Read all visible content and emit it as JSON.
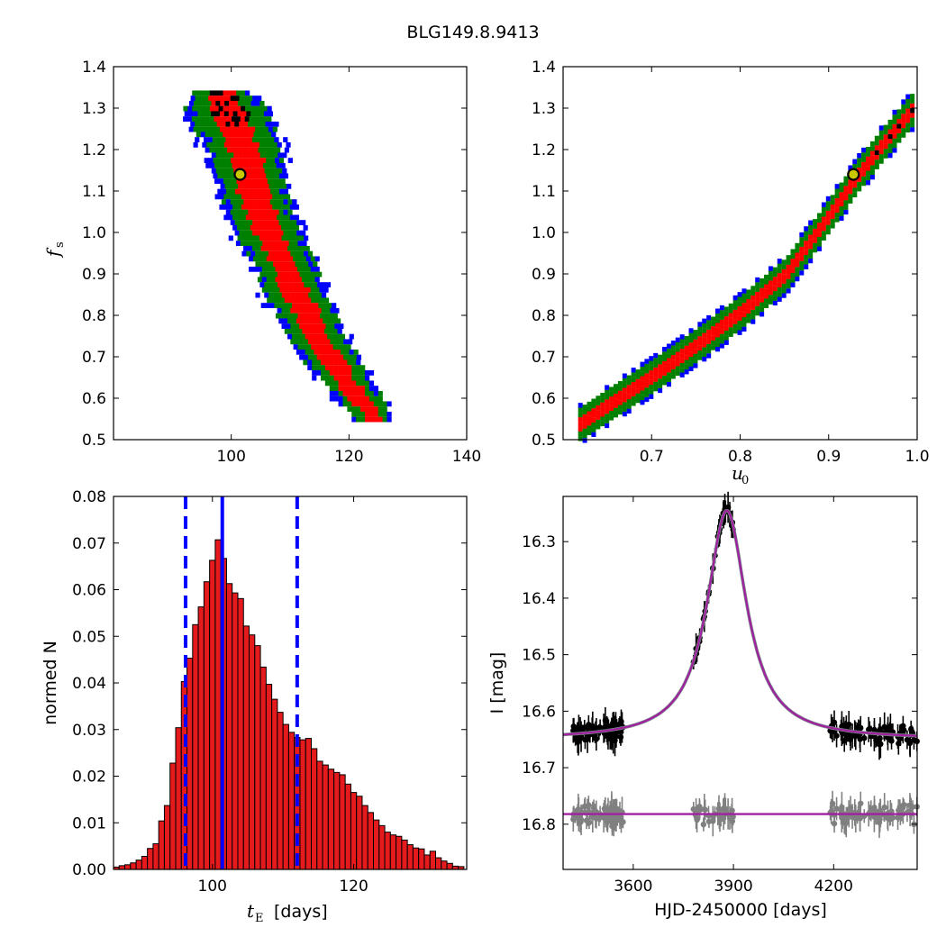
{
  "figure": {
    "title": "BLG149.8.9413"
  },
  "chart_data": [
    {
      "panel": "top-left",
      "type": "heatmap",
      "xlim": [
        80,
        140
      ],
      "ylim": [
        0.5,
        1.4
      ],
      "xticks": [
        "100",
        "120",
        "140"
      ],
      "yticks": [
        "0.5",
        "0.6",
        "0.7",
        "0.8",
        "0.9",
        "1.0",
        "1.1",
        "1.2",
        "1.3",
        "1.4"
      ],
      "xlabel": "",
      "ylabel": "f",
      "ylabel_sub": "s",
      "colors": {
        "outer": "#0000ff",
        "mid": "#008000",
        "inner": "#ff0000",
        "core": "#000000",
        "best_fit_face": "#c8c800"
      },
      "best_fit": {
        "x": 101.5,
        "y": 1.14
      },
      "bands": [
        {
          "y": 1.35,
          "xmin": 93,
          "xmax": 102
        },
        {
          "y": 1.3,
          "xmin": 92,
          "xmax": 106
        },
        {
          "y": 1.25,
          "xmin": 94,
          "xmax": 107
        },
        {
          "y": 1.2,
          "xmin": 96,
          "xmax": 108
        },
        {
          "y": 1.15,
          "xmin": 97,
          "xmax": 108.5
        },
        {
          "y": 1.1,
          "xmin": 98,
          "xmax": 109
        },
        {
          "y": 1.05,
          "xmin": 99.5,
          "xmax": 110
        },
        {
          "y": 1.0,
          "xmin": 101,
          "xmax": 111.5
        },
        {
          "y": 0.95,
          "xmin": 103,
          "xmax": 113
        },
        {
          "y": 0.9,
          "xmin": 104.5,
          "xmax": 114
        },
        {
          "y": 0.85,
          "xmin": 106,
          "xmax": 116
        },
        {
          "y": 0.8,
          "xmin": 108,
          "xmax": 117.5
        },
        {
          "y": 0.75,
          "xmin": 110,
          "xmax": 119
        },
        {
          "y": 0.7,
          "xmin": 112,
          "xmax": 121
        },
        {
          "y": 0.65,
          "xmin": 115,
          "xmax": 123
        },
        {
          "y": 0.6,
          "xmin": 118,
          "xmax": 125.5
        },
        {
          "y": 0.55,
          "xmin": 121,
          "xmax": 127
        }
      ]
    },
    {
      "panel": "top-right",
      "type": "heatmap",
      "xlim": [
        0.6,
        1.0
      ],
      "ylim": [
        0.5,
        1.4
      ],
      "xticks": [
        "0.7",
        "0.8",
        "0.9",
        "1.0"
      ],
      "yticks": [
        "0.5",
        "0.6",
        "0.7",
        "0.8",
        "0.9",
        "1.0",
        "1.1",
        "1.2",
        "1.3",
        "1.4"
      ],
      "xlabel": "u",
      "xlabel_sub": "0",
      "ylabel": "",
      "best_fit": {
        "x": 0.928,
        "y": 1.14
      },
      "curve": [
        [
          0.615,
          0.54
        ],
        [
          0.65,
          0.59
        ],
        [
          0.7,
          0.66
        ],
        [
          0.75,
          0.735
        ],
        [
          0.8,
          0.815
        ],
        [
          0.85,
          0.905
        ],
        [
          0.9,
          1.05
        ],
        [
          0.93,
          1.14
        ],
        [
          0.96,
          1.22
        ],
        [
          1.0,
          1.32
        ]
      ]
    },
    {
      "panel": "bottom-left",
      "type": "bar",
      "xlim": [
        86,
        136
      ],
      "ylim": [
        0.0,
        0.08
      ],
      "xticks": [
        "100",
        "120"
      ],
      "yticks": [
        "0.00",
        "0.01",
        "0.02",
        "0.03",
        "0.04",
        "0.05",
        "0.06",
        "0.07",
        "0.08"
      ],
      "xlabel": "t",
      "xlabel_sub": "E",
      "xlabel_suffix": "[days]",
      "ylabel": "normed N",
      "bar_color": "#e41a1c",
      "bin_width": 0.8,
      "bin_start": 86,
      "values": [
        0.0005,
        0.0008,
        0.001,
        0.0014,
        0.002,
        0.0028,
        0.0045,
        0.0055,
        0.0104,
        0.0137,
        0.0228,
        0.0304,
        0.0403,
        0.0453,
        0.0525,
        0.0563,
        0.0617,
        0.0663,
        0.0707,
        0.0667,
        0.0613,
        0.0593,
        0.0581,
        0.0522,
        0.0503,
        0.048,
        0.0434,
        0.0397,
        0.0365,
        0.0337,
        0.0311,
        0.0294,
        0.0283,
        0.0278,
        0.0281,
        0.0259,
        0.0232,
        0.0224,
        0.0215,
        0.0208,
        0.0203,
        0.0183,
        0.0165,
        0.0157,
        0.0137,
        0.0122,
        0.0106,
        0.0094,
        0.008,
        0.0074,
        0.0071,
        0.0063,
        0.0053,
        0.0046,
        0.0044,
        0.0031,
        0.0039,
        0.0025,
        0.0018,
        0.0013,
        0.0007,
        0.0006
      ],
      "vlines": [
        {
          "x": 96.2,
          "style": "dashed",
          "color": "#0000ff"
        },
        {
          "x": 101.4,
          "style": "solid",
          "color": "#0000ff"
        },
        {
          "x": 112.0,
          "style": "dashed",
          "color": "#0000ff"
        }
      ]
    },
    {
      "panel": "bottom-right",
      "type": "scatter",
      "xlim": [
        3390,
        4450
      ],
      "ylim": [
        16.88,
        16.22
      ],
      "xticks": [
        "3600",
        "3900",
        "4200"
      ],
      "yticks": [
        "16.3",
        "16.4",
        "16.5",
        "16.6",
        "16.7",
        "16.8"
      ],
      "xlabel": "HJD-2450000 [days]",
      "ylabel": "I [mag]",
      "model": {
        "baseline": 16.65,
        "peak": 16.245,
        "t0": 3880,
        "width": 72,
        "color": "#a020a0"
      },
      "residual_baseline": 16.782,
      "data_color": "#000000",
      "residual_color": "#808080",
      "segments": [
        {
          "start": 3420,
          "end": 3570
        },
        {
          "start": 3780,
          "end": 3900
        },
        {
          "start": 4180,
          "end": 4450
        }
      ]
    }
  ]
}
